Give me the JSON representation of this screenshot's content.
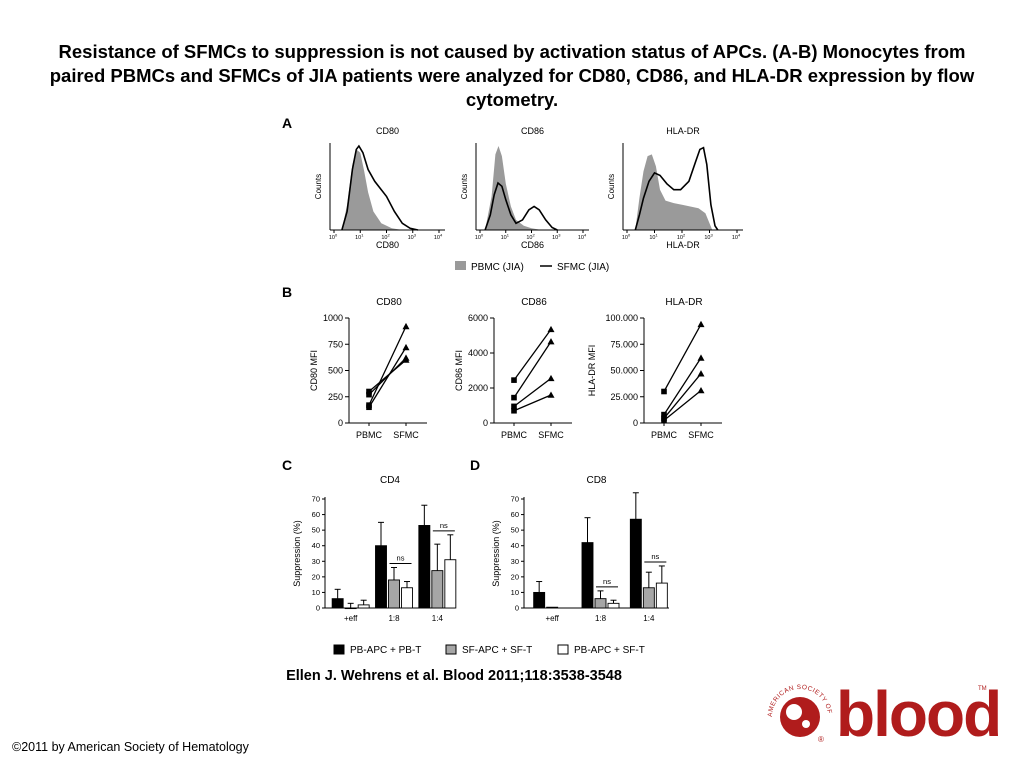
{
  "title": "Resistance of SFMCs to suppression is not caused by activation status of APCs. (A-B) Monocytes from paired PBMCs and SFMCs of JIA patients were analyzed for CD80, CD86, and HLA-DR expression by flow cytometry.",
  "citation": "Ellen J. Wehrens et al. Blood 2011;118:3538-3548",
  "copyright": "©2011 by American Society of Hematology",
  "logo": {
    "text": "blood",
    "ring_text": "AMERICAN SOCIETY OF HEMATOLOGY",
    "tm": "TM",
    "reg": "®",
    "color": "#b01c1c"
  },
  "panel_letters": {
    "a": "A",
    "b": "B",
    "c": "C",
    "d": "D"
  },
  "colors": {
    "pbmc_fill": "#9a9a9a",
    "sf_bar": "#a6a6a6",
    "pb_bar": "#000000"
  },
  "chart_data": [
    {
      "panel": "A",
      "type": "area",
      "ylabel": "Counts",
      "tick_labels": [
        "10",
        "10",
        "10",
        "10",
        "10"
      ],
      "tick_exponents": [
        "0",
        "1",
        "2",
        "3",
        "4"
      ],
      "legend": {
        "pbmc": "PBMC (JIA)",
        "sfmc": "SFMC (JIA)",
        "placement": "bottom"
      },
      "histograms": [
        {
          "title": "CD80",
          "xlabel": "CD80",
          "pbmc": [
            [
              0.3,
              0
            ],
            [
              0.5,
              30
            ],
            [
              0.7,
              78
            ],
            [
              0.85,
              96
            ],
            [
              1.0,
              92
            ],
            [
              1.15,
              70
            ],
            [
              1.3,
              45
            ],
            [
              1.5,
              22
            ],
            [
              1.8,
              8
            ],
            [
              2.2,
              2
            ],
            [
              2.6,
              0
            ]
          ],
          "sfmc": [
            [
              0.3,
              0
            ],
            [
              0.5,
              22
            ],
            [
              0.7,
              72
            ],
            [
              0.85,
              96
            ],
            [
              0.95,
              100
            ],
            [
              1.1,
              92
            ],
            [
              1.3,
              72
            ],
            [
              1.55,
              58
            ],
            [
              1.8,
              48
            ],
            [
              2.0,
              40
            ],
            [
              2.3,
              22
            ],
            [
              2.6,
              8
            ],
            [
              2.9,
              2
            ],
            [
              3.2,
              0
            ]
          ]
        },
        {
          "title": "CD86",
          "xlabel": "CD86",
          "pbmc": [
            [
              0.2,
              0
            ],
            [
              0.45,
              40
            ],
            [
              0.6,
              90
            ],
            [
              0.72,
              100
            ],
            [
              0.85,
              88
            ],
            [
              1.0,
              55
            ],
            [
              1.2,
              28
            ],
            [
              1.4,
              12
            ],
            [
              1.7,
              5
            ],
            [
              2.0,
              2
            ],
            [
              2.4,
              0
            ]
          ],
          "sfmc": [
            [
              0.2,
              0
            ],
            [
              0.4,
              18
            ],
            [
              0.55,
              42
            ],
            [
              0.7,
              56
            ],
            [
              0.85,
              52
            ],
            [
              1.0,
              36
            ],
            [
              1.2,
              18
            ],
            [
              1.4,
              8
            ],
            [
              1.65,
              12
            ],
            [
              1.9,
              24
            ],
            [
              2.1,
              28
            ],
            [
              2.3,
              24
            ],
            [
              2.55,
              12
            ],
            [
              2.8,
              3
            ],
            [
              3.0,
              0
            ]
          ]
        },
        {
          "title": "HLA-DR",
          "xlabel": "HLA-DR",
          "pbmc": [
            [
              0.3,
              0
            ],
            [
              0.45,
              38
            ],
            [
              0.6,
              70
            ],
            [
              0.75,
              88
            ],
            [
              0.9,
              90
            ],
            [
              1.05,
              76
            ],
            [
              1.2,
              48
            ],
            [
              1.4,
              35
            ],
            [
              1.7,
              32
            ],
            [
              2.0,
              30
            ],
            [
              2.3,
              28
            ],
            [
              2.6,
              26
            ],
            [
              2.85,
              20
            ],
            [
              3.0,
              8
            ],
            [
              3.1,
              0
            ]
          ],
          "sfmc": [
            [
              0.3,
              0
            ],
            [
              0.45,
              18
            ],
            [
              0.6,
              38
            ],
            [
              0.8,
              58
            ],
            [
              1.0,
              68
            ],
            [
              1.2,
              65
            ],
            [
              1.45,
              55
            ],
            [
              1.7,
              48
            ],
            [
              1.95,
              48
            ],
            [
              2.25,
              58
            ],
            [
              2.5,
              82
            ],
            [
              2.65,
              96
            ],
            [
              2.78,
              98
            ],
            [
              2.9,
              78
            ],
            [
              3.05,
              30
            ],
            [
              3.2,
              5
            ],
            [
              3.3,
              0
            ]
          ]
        }
      ]
    },
    {
      "panel": "B",
      "type": "line",
      "categories": [
        "PBMC",
        "SFMC"
      ],
      "plots": [
        {
          "title": "CD80",
          "ylabel": "CD80 MFI",
          "ylim": [
            0,
            1000
          ],
          "yticks": [
            "0",
            "250",
            "500",
            "750",
            "1000"
          ],
          "pairs": [
            [
              170,
              920
            ],
            [
              150,
              720
            ],
            [
              270,
              620
            ],
            [
              300,
              600
            ]
          ]
        },
        {
          "title": "CD86",
          "ylabel": "CD86 MFI",
          "ylim": [
            0,
            6000
          ],
          "yticks": [
            "0",
            "2000",
            "4000",
            "6000"
          ],
          "pairs": [
            [
              2450,
              5350
            ],
            [
              1450,
              4650
            ],
            [
              950,
              2550
            ],
            [
              700,
              1600
            ]
          ]
        },
        {
          "title": "HLA-DR",
          "ylabel": "HLA-DR MFI",
          "ylim": [
            0,
            100000
          ],
          "yticks": [
            "0",
            "25.000",
            "50.000",
            "75.000",
            "100.000"
          ],
          "pairs": [
            [
              30000,
              94000
            ],
            [
              8000,
              62000
            ],
            [
              4500,
              47000
            ],
            [
              2500,
              31000
            ]
          ]
        }
      ]
    },
    {
      "panel": "C-D",
      "type": "bar",
      "categories": [
        "+eff",
        "1:8",
        "1:4"
      ],
      "ylabel": "Suppression (%)",
      "ylim": [
        0,
        70
      ],
      "yticks": [
        "0",
        "10",
        "20",
        "30",
        "40",
        "50",
        "60",
        "70"
      ],
      "sig_label": "ns",
      "series_names": [
        "PB-APC + PB-T",
        "SF-APC + SF-T",
        "PB-APC + SF-T"
      ],
      "plots": [
        {
          "title": "CD4",
          "values": [
            [
              6,
              0,
              2
            ],
            [
              40,
              18,
              13
            ],
            [
              53,
              24,
              31
            ]
          ],
          "errors": [
            [
              6,
              3,
              3
            ],
            [
              15,
              8,
              4
            ],
            [
              13,
              17,
              16
            ]
          ]
        },
        {
          "title": "CD8",
          "values": [
            [
              10,
              0.5,
              null
            ],
            [
              42,
              6,
              3
            ],
            [
              57,
              13,
              16
            ]
          ],
          "errors": [
            [
              7,
              0,
              0
            ],
            [
              16,
              5,
              2
            ],
            [
              17,
              10,
              11
            ]
          ]
        }
      ]
    }
  ]
}
